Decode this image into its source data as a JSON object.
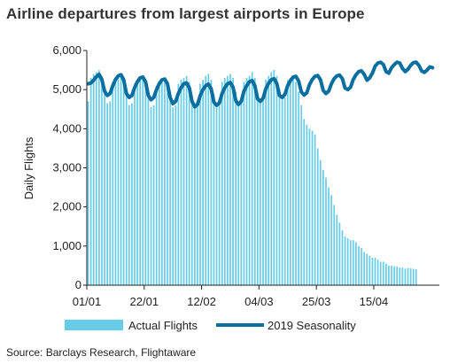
{
  "title": "Airline departures from largest airports in Europe",
  "source": "Source: Barclays Research, Flightaware",
  "colors": {
    "actual": "#66CCE8",
    "seasonality": "#0A6E9E",
    "axis": "#222222"
  },
  "chart_data": {
    "type": "bar",
    "ylabel": "Daily Flights",
    "xlabel": "",
    "ylim": [
      0,
      6000
    ],
    "y_ticks": [
      "0",
      "1,000",
      "2,000",
      "3,000",
      "4,000",
      "5,000",
      "6,000"
    ],
    "x_ticks": [
      "01/01",
      "22/01",
      "12/02",
      "04/03",
      "25/03",
      "15/04"
    ],
    "x_range_days": [
      1,
      130
    ],
    "grid": false,
    "legend_position": "bottom",
    "series": [
      {
        "name": "Actual Flights",
        "type": "bar",
        "start_date": "01/01",
        "values": [
          4700,
          5300,
          5400,
          5450,
          5500,
          5350,
          5000,
          4650,
          4700,
          5200,
          5300,
          5350,
          5400,
          5250,
          4900,
          4600,
          4650,
          5150,
          5250,
          5300,
          5350,
          5200,
          4850,
          4550,
          4600,
          5100,
          5200,
          5250,
          5300,
          5150,
          4800,
          4550,
          4600,
          5150,
          5250,
          5300,
          5350,
          5200,
          4850,
          4550,
          4650,
          5150,
          5250,
          5350,
          5400,
          5250,
          4900,
          4600,
          4700,
          5200,
          5300,
          5350,
          5400,
          5300,
          4950,
          4650,
          4700,
          5200,
          5300,
          5350,
          5450,
          5300,
          4950,
          4700,
          4750,
          5250,
          5350,
          5450,
          5500,
          5350,
          5000,
          4750,
          4800,
          5250,
          5300,
          5300,
          5200,
          4950,
          4600,
          4250,
          4100,
          4000,
          3950,
          3850,
          3500,
          3200,
          2950,
          2750,
          2500,
          2300,
          2050,
          1800,
          1600,
          1400,
          1250,
          1200,
          1150,
          1150,
          1100,
          1000,
          950,
          850,
          800,
          750,
          700,
          700,
          650,
          600,
          600,
          550,
          500,
          500,
          480,
          480,
          450,
          450,
          420,
          440,
          430,
          420,
          410
        ]
      },
      {
        "name": "2019 Seasonality",
        "type": "line",
        "start_date": "01/01",
        "values": [
          5150,
          5170,
          5240,
          5330,
          5390,
          5260,
          4960,
          4850,
          4900,
          5100,
          5260,
          5350,
          5380,
          5250,
          4900,
          4800,
          4850,
          5050,
          5200,
          5300,
          5320,
          5200,
          4850,
          4740,
          4800,
          5000,
          5150,
          5250,
          5270,
          5150,
          4800,
          4640,
          4700,
          4900,
          5050,
          5150,
          5170,
          5050,
          4700,
          4560,
          4620,
          4850,
          5000,
          5100,
          5140,
          5020,
          4680,
          4600,
          4660,
          4900,
          5050,
          5150,
          5180,
          5060,
          4720,
          4620,
          4700,
          4960,
          5100,
          5200,
          5230,
          5100,
          4760,
          4700,
          4780,
          5020,
          5160,
          5250,
          5280,
          5160,
          4850,
          4800,
          4880,
          5100,
          5230,
          5320,
          5340,
          5220,
          4940,
          4860,
          4920,
          5130,
          5260,
          5340,
          5360,
          5250,
          4980,
          4900,
          4960,
          5150,
          5280,
          5350,
          5370,
          5280,
          5040,
          5000,
          5060,
          5260,
          5380,
          5460,
          5480,
          5390,
          5240,
          5300,
          5420,
          5600,
          5680,
          5700,
          5640,
          5460,
          5420,
          5560,
          5640,
          5700,
          5680,
          5540,
          5460,
          5520,
          5620,
          5690,
          5700,
          5620,
          5480,
          5440,
          5500,
          5580,
          5560
        ]
      }
    ]
  }
}
